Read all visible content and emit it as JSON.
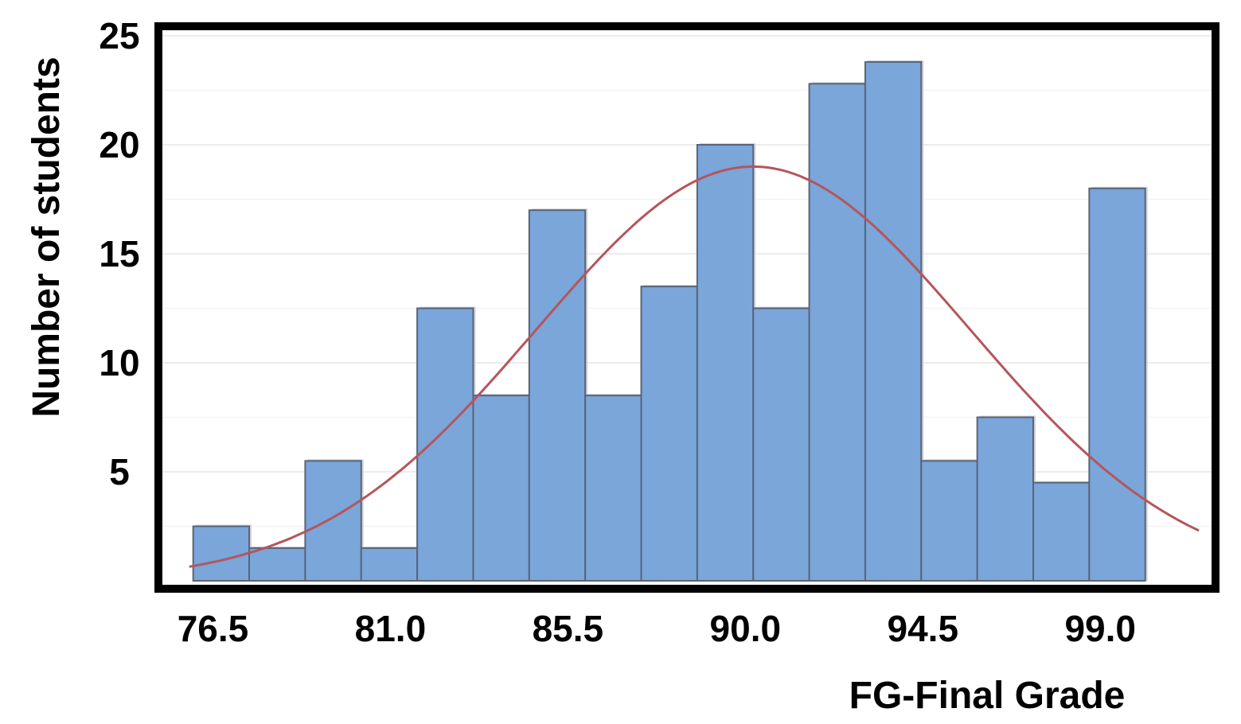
{
  "chart_data": {
    "type": "bar",
    "subtype": "histogram",
    "xlabel": "FG-Final Grade",
    "ylabel": "Number of students",
    "x_ticks": [
      "76.5",
      "81.0",
      "85.5",
      "90.0",
      "94.5",
      "99.0"
    ],
    "x_tick_values": [
      76.5,
      81.0,
      85.5,
      90.0,
      94.5,
      99.0
    ],
    "y_ticks": [
      "5",
      "10",
      "15",
      "20",
      "25"
    ],
    "y_tick_values": [
      5,
      10,
      15,
      20,
      25
    ],
    "xlim": [
      75.3,
      101.7
    ],
    "ylim": [
      0,
      25
    ],
    "bin_width": 1.42,
    "bins": [
      {
        "start": 76.0,
        "end": 77.42,
        "count": 2.5
      },
      {
        "start": 77.42,
        "end": 78.84,
        "count": 1.5
      },
      {
        "start": 78.84,
        "end": 80.26,
        "count": 5.5
      },
      {
        "start": 80.26,
        "end": 81.68,
        "count": 1.5
      },
      {
        "start": 81.68,
        "end": 83.1,
        "count": 12.5
      },
      {
        "start": 83.1,
        "end": 84.52,
        "count": 8.5
      },
      {
        "start": 84.52,
        "end": 85.94,
        "count": 17.0
      },
      {
        "start": 85.94,
        "end": 87.36,
        "count": 8.5
      },
      {
        "start": 87.36,
        "end": 88.78,
        "count": 13.5
      },
      {
        "start": 88.78,
        "end": 90.2,
        "count": 20.0
      },
      {
        "start": 90.2,
        "end": 91.62,
        "count": 12.5
      },
      {
        "start": 91.62,
        "end": 93.04,
        "count": 22.8
      },
      {
        "start": 93.04,
        "end": 94.46,
        "count": 23.8
      },
      {
        "start": 94.46,
        "end": 95.88,
        "count": 5.5
      },
      {
        "start": 95.88,
        "end": 97.3,
        "count": 7.5
      },
      {
        "start": 97.3,
        "end": 98.72,
        "count": 4.5
      },
      {
        "start": 98.72,
        "end": 100.14,
        "count": 18.0
      }
    ],
    "normal_curve": {
      "mean": 90.2,
      "sd": 5.5,
      "peak": 19.0
    },
    "bar_color": "#7aa6d9",
    "bar_edge_color": "#59647a",
    "curve_color": "#b5555c",
    "frame_color": "#000000",
    "grid": true
  }
}
